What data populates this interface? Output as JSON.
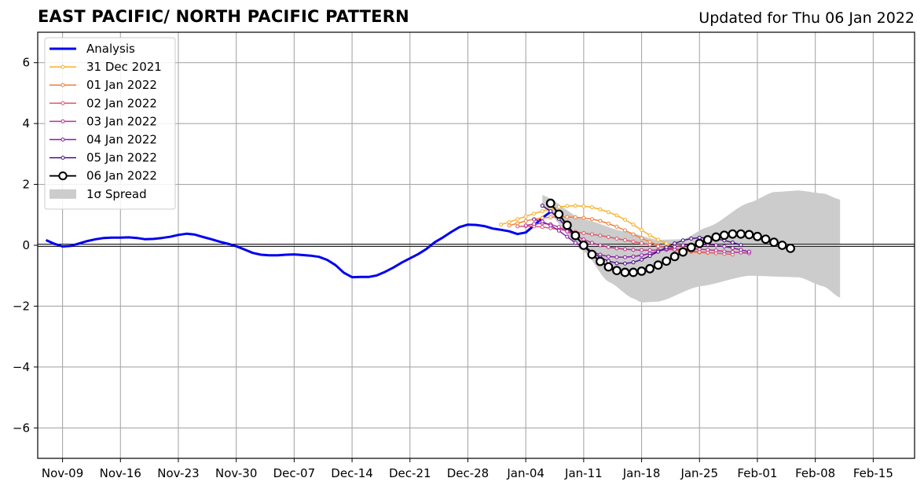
{
  "header": {
    "title": "EAST PACIFIC/ NORTH PACIFIC PATTERN",
    "updated": "Updated for Thu 06 Jan 2022"
  },
  "chart_data": {
    "type": "line",
    "title": "EAST PACIFIC/ NORTH PACIFIC PATTERN",
    "subtitle": "Updated for Thu 06 Jan 2022",
    "xlabel": "",
    "ylabel": "",
    "x_axis": {
      "type": "date",
      "range": [
        "2021-11-06",
        "2022-02-20"
      ],
      "ticks": [
        {
          "date": "2021-11-09",
          "label": "Nov-09"
        },
        {
          "date": "2021-11-16",
          "label": "Nov-16"
        },
        {
          "date": "2021-11-23",
          "label": "Nov-23"
        },
        {
          "date": "2021-11-30",
          "label": "Nov-30"
        },
        {
          "date": "2021-12-07",
          "label": "Dec-07"
        },
        {
          "date": "2021-12-14",
          "label": "Dec-14"
        },
        {
          "date": "2021-12-21",
          "label": "Dec-21"
        },
        {
          "date": "2021-12-28",
          "label": "Dec-28"
        },
        {
          "date": "2022-01-04",
          "label": "Jan-04"
        },
        {
          "date": "2022-01-11",
          "label": "Jan-11"
        },
        {
          "date": "2022-01-18",
          "label": "Jan-18"
        },
        {
          "date": "2022-01-25",
          "label": "Jan-25"
        },
        {
          "date": "2022-02-01",
          "label": "Feb-01"
        },
        {
          "date": "2022-02-08",
          "label": "Feb-08"
        },
        {
          "date": "2022-02-15",
          "label": "Feb-15"
        }
      ]
    },
    "y_axis": {
      "range": [
        -7,
        7
      ],
      "ticks": [
        {
          "value": -6,
          "label": "−6"
        },
        {
          "value": -4,
          "label": "−4"
        },
        {
          "value": -2,
          "label": "−2"
        },
        {
          "value": 0,
          "label": "0"
        },
        {
          "value": 2,
          "label": "2"
        },
        {
          "value": 4,
          "label": "4"
        },
        {
          "value": 6,
          "label": "6"
        }
      ]
    },
    "grid": true,
    "zero_line": true,
    "legend_position": "top-left",
    "series": [
      {
        "name": "Analysis",
        "color": "#0000ee",
        "style": "thick-line",
        "start": "2021-11-07",
        "values": [
          0.17,
          0.05,
          -0.04,
          -0.02,
          0.06,
          0.14,
          0.2,
          0.24,
          0.25,
          0.25,
          0.26,
          0.24,
          0.2,
          0.21,
          0.24,
          0.28,
          0.34,
          0.38,
          0.35,
          0.27,
          0.2,
          0.12,
          0.05,
          -0.03,
          -0.14,
          -0.25,
          -0.31,
          -0.33,
          -0.33,
          -0.31,
          -0.3,
          -0.32,
          -0.34,
          -0.38,
          -0.48,
          -0.65,
          -0.9,
          -1.05,
          -1.04,
          -1.04,
          -0.99,
          -0.87,
          -0.73,
          -0.57,
          -0.43,
          -0.29,
          -0.12,
          0.1,
          0.26,
          0.44,
          0.6,
          0.68,
          0.67,
          0.63,
          0.55,
          0.51,
          0.46,
          0.37,
          0.42,
          0.65,
          0.9,
          1.1
        ]
      },
      {
        "name": "31 Dec 2021",
        "color": "#f6b027",
        "style": "dot-line",
        "start": "2022-01-01",
        "values": [
          0.68,
          0.76,
          0.86,
          0.95,
          1.04,
          1.12,
          1.2,
          1.26,
          1.29,
          1.3,
          1.28,
          1.25,
          1.18,
          1.09,
          0.98,
          0.84,
          0.68,
          0.5,
          0.33,
          0.18,
          0.06,
          -0.03,
          -0.08,
          -0.11
        ]
      },
      {
        "name": "01 Jan 2022",
        "color": "#f0803a",
        "style": "dot-line",
        "start": "2022-01-02",
        "values": [
          0.65,
          0.72,
          0.8,
          0.86,
          0.9,
          0.92,
          0.93,
          0.93,
          0.92,
          0.9,
          0.86,
          0.8,
          0.71,
          0.61,
          0.49,
          0.36,
          0.23,
          0.11,
          0,
          -0.09,
          -0.15,
          -0.19,
          -0.22,
          -0.24,
          -0.25
        ]
      },
      {
        "name": "02 Jan 2022",
        "color": "#dc5a6c",
        "style": "dot-line",
        "start": "2022-01-03",
        "values": [
          0.62,
          0.63,
          0.62,
          0.6,
          0.56,
          0.52,
          0.48,
          0.44,
          0.4,
          0.36,
          0.32,
          0.27,
          0.22,
          0.17,
          0.12,
          0.07,
          0.02,
          -0.03,
          -0.08,
          -0.12,
          -0.16,
          -0.19,
          -0.22,
          -0.24,
          -0.26,
          -0.28,
          -0.3
        ]
      },
      {
        "name": "03 Jan 2022",
        "color": "#b9338e",
        "style": "dot-line",
        "start": "2022-01-04",
        "values": [
          0.65,
          0.7,
          0.72,
          0.69,
          0.6,
          0.46,
          0.32,
          0.19,
          0.08,
          0,
          -0.06,
          -0.1,
          -0.13,
          -0.15,
          -0.16,
          -0.16,
          -0.16,
          -0.15,
          -0.14,
          -0.13,
          -0.12,
          -0.13,
          -0.15,
          -0.17,
          -0.2,
          -0.22,
          -0.24,
          -0.26
        ]
      },
      {
        "name": "04 Jan 2022",
        "color": "#8a1ca6",
        "style": "dot-line",
        "start": "2022-01-05",
        "values": [
          0.85,
          0.78,
          0.65,
          0.48,
          0.28,
          0.08,
          -0.08,
          -0.21,
          -0.31,
          -0.37,
          -0.39,
          -0.39,
          -0.37,
          -0.33,
          -0.27,
          -0.2,
          -0.12,
          -0.05,
          0,
          0.02,
          0.02,
          0.02,
          0,
          -0.04,
          -0.09,
          -0.15,
          -0.21
        ]
      },
      {
        "name": "05 Jan 2022",
        "color": "#4b0f8a",
        "style": "dot-line",
        "start": "2022-01-06",
        "values": [
          1.3,
          1.12,
          0.87,
          0.58,
          0.28,
          0,
          -0.22,
          -0.4,
          -0.52,
          -0.59,
          -0.6,
          -0.56,
          -0.47,
          -0.35,
          -0.21,
          -0.07,
          0.06,
          0.16,
          0.22,
          0.25,
          0.24,
          0.21,
          0.16,
          0.09,
          0.01
        ]
      },
      {
        "name": "06 Jan 2022",
        "color": "#000000",
        "style": "circle-line",
        "start": "2022-01-07",
        "values": [
          1.38,
          1.02,
          0.66,
          0.32,
          0,
          -0.3,
          -0.53,
          -0.71,
          -0.83,
          -0.89,
          -0.89,
          -0.85,
          -0.77,
          -0.65,
          -0.52,
          -0.37,
          -0.22,
          -0.07,
          0.06,
          0.18,
          0.27,
          0.33,
          0.37,
          0.37,
          0.35,
          0.29,
          0.2,
          0.1,
          0,
          -0.1
        ]
      }
    ],
    "spread": {
      "name": "1σ Spread",
      "color": "#cccccc",
      "start": "2022-01-06",
      "days": 31,
      "upper_at": [
        {
          "day": 0,
          "value": 1.65
        },
        {
          "day": 5,
          "value": 0.85
        },
        {
          "day": 10,
          "value": 0.45
        },
        {
          "day": 14,
          "value": 0.18
        },
        {
          "day": 17,
          "value": 0.2
        },
        {
          "day": 20,
          "value": 0.6
        },
        {
          "day": 25,
          "value": 1.4
        },
        {
          "day": 28,
          "value": 1.75
        },
        {
          "day": 31,
          "value": 1.8
        },
        {
          "day": 34,
          "value": 1.7
        },
        {
          "day": 36,
          "value": 1.5
        }
      ],
      "lower_at": [
        {
          "day": 0,
          "value": 1.25
        },
        {
          "day": 5,
          "value": -0.2
        },
        {
          "day": 8,
          "value": -1.2
        },
        {
          "day": 11,
          "value": -1.75
        },
        {
          "day": 12,
          "value": -1.88
        },
        {
          "day": 14,
          "value": -1.85
        },
        {
          "day": 19,
          "value": -1.35
        },
        {
          "day": 25,
          "value": -1.0
        },
        {
          "day": 31,
          "value": -1.05
        },
        {
          "day": 34,
          "value": -1.35
        },
        {
          "day": 36,
          "value": -1.72
        }
      ]
    },
    "legend": [
      {
        "label": "Analysis",
        "kind": "thick-line",
        "color": "#0000ee"
      },
      {
        "label": "31 Dec 2021",
        "kind": "dot-line",
        "color": "#f6b027"
      },
      {
        "label": "01 Jan 2022",
        "kind": "dot-line",
        "color": "#f0803a"
      },
      {
        "label": "02 Jan 2022",
        "kind": "dot-line",
        "color": "#dc5a6c"
      },
      {
        "label": "03 Jan 2022",
        "kind": "dot-line",
        "color": "#b9338e"
      },
      {
        "label": "04 Jan 2022",
        "kind": "dot-line",
        "color": "#8a1ca6"
      },
      {
        "label": "05 Jan 2022",
        "kind": "dot-line",
        "color": "#4b0f8a"
      },
      {
        "label": "06 Jan 2022",
        "kind": "circle-line",
        "color": "#000000"
      },
      {
        "label": "1σ Spread",
        "kind": "patch",
        "color": "#cccccc"
      }
    ]
  }
}
